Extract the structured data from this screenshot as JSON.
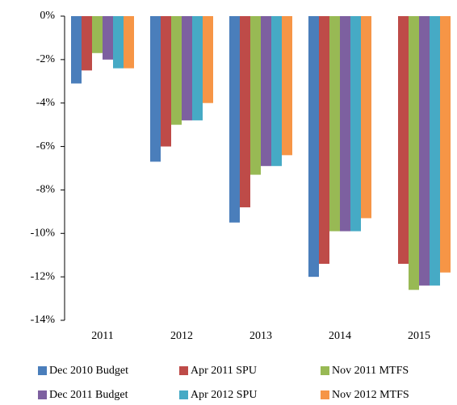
{
  "chart_data": {
    "type": "bar",
    "categories": [
      "2011",
      "2012",
      "2013",
      "2014",
      "2015"
    ],
    "series": [
      {
        "name": "Dec 2010 Budget",
        "color": "#4a7ebb",
        "values": [
          -3.1,
          -6.7,
          -9.5,
          -12.0,
          null
        ]
      },
      {
        "name": "Apr 2011 SPU",
        "color": "#be4b48",
        "values": [
          -2.5,
          -6.0,
          -8.8,
          -11.4,
          -11.4
        ]
      },
      {
        "name": "Nov 2011 MTFS",
        "color": "#98b954",
        "values": [
          -1.7,
          -5.0,
          -7.3,
          -9.9,
          -12.6
        ]
      },
      {
        "name": "Dec 2011 Budget",
        "color": "#7d60a0",
        "values": [
          -2.0,
          -4.8,
          -6.9,
          -9.9,
          -12.4
        ]
      },
      {
        "name": "Apr 2012 SPU",
        "color": "#46aac5",
        "values": [
          -2.4,
          -4.8,
          -6.9,
          -9.9,
          -12.4
        ]
      },
      {
        "name": "Nov 2012 MTFS",
        "color": "#f69546",
        "values": [
          -2.4,
          -4.0,
          -6.4,
          -9.3,
          -11.8
        ]
      }
    ],
    "ylim": [
      -14,
      0
    ],
    "yticks": [
      {
        "value": 0,
        "label": "0%"
      },
      {
        "value": -2,
        "label": "-2%"
      },
      {
        "value": -4,
        "label": "-4%"
      },
      {
        "value": -6,
        "label": "-6%"
      },
      {
        "value": -8,
        "label": "-8%"
      },
      {
        "value": -10,
        "label": "-10%"
      },
      {
        "value": -12,
        "label": "-12%"
      },
      {
        "value": -14,
        "label": "-14%"
      }
    ],
    "grid": false,
    "legend": "bottom"
  }
}
